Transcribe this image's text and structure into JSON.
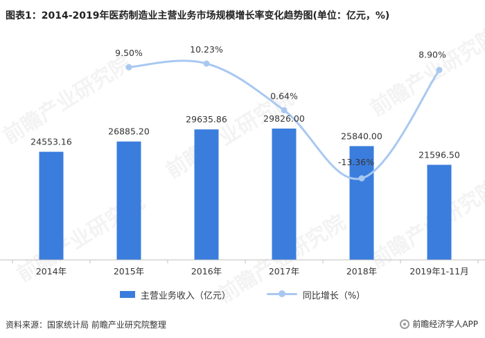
{
  "title": "图表1：2014-2019年医药制造业主营业务市场规模增长率变化趋势图(单位：亿元，%)",
  "source": "资料来源：国家统计局 前瞻产业研究院整理",
  "brand": "前瞻经济学人APP",
  "watermark_text": "前瞻产业研究院",
  "colors": {
    "bar": "#3b7ddd",
    "line": "#a8c8f0",
    "axis": "#bfbfbf",
    "label": "#333333"
  },
  "chart_data": {
    "type": "bar",
    "categories": [
      "2014年",
      "2015年",
      "2016年",
      "2017年",
      "2018年",
      "2019年1-11月"
    ],
    "series": [
      {
        "name": "主营业务收入（亿元）",
        "type": "bar",
        "values": [
          24553.16,
          26885.2,
          29635.86,
          29826.0,
          25840.0,
          21596.5
        ],
        "labels": [
          "24553.16",
          "26885.20",
          "29635.86",
          "29826.00",
          "25840.00",
          "21596.50"
        ]
      },
      {
        "name": "同比增长（%）",
        "type": "line",
        "smooth": true,
        "values": [
          null,
          9.5,
          10.23,
          0.64,
          -13.36,
          8.9
        ],
        "labels": [
          "",
          "9.50%",
          "10.23%",
          "0.64%",
          "-13.36%",
          "8.90%"
        ]
      }
    ],
    "grid": false,
    "legend_position": "bottom"
  }
}
